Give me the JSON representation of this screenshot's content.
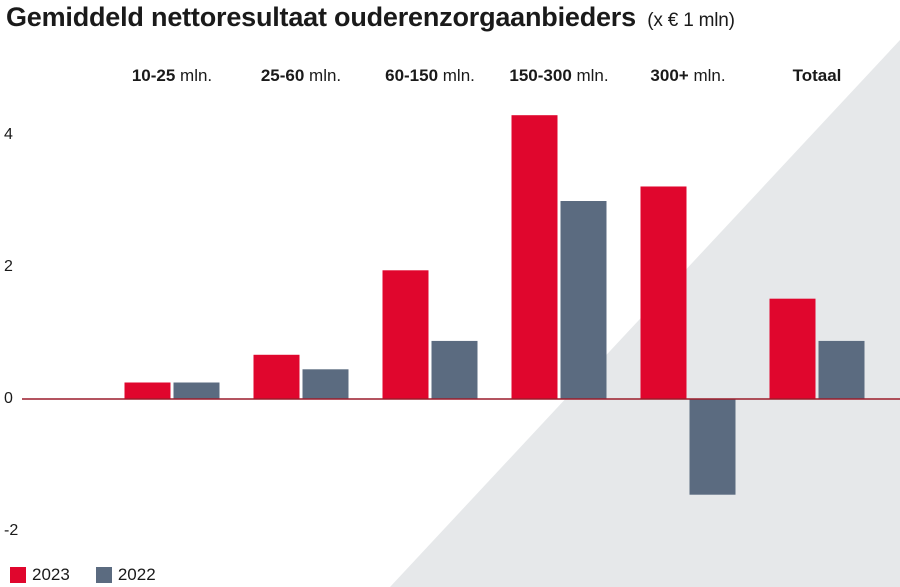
{
  "title": "Gemiddeld nettoresultaat ouderenzorgaanbieders",
  "title_unit": "(x € 1 mln)",
  "colors": {
    "2023": "#e0062d",
    "2022": "#5b6b80",
    "background_wedge": "#e6e8ea",
    "axis": "#9b1c2b"
  },
  "legend": [
    {
      "label": "2023",
      "color": "#e0062d"
    },
    {
      "label": "2022",
      "color": "#5b6b80"
    }
  ],
  "chart_data": {
    "type": "bar",
    "title": "Gemiddeld nettoresultaat ouderenzorgaanbieders",
    "subtitle": "(x € 1 mln)",
    "categories": [
      {
        "bold": "10-25",
        "rest": " mln."
      },
      {
        "bold": "25-60",
        "rest": " mln."
      },
      {
        "bold": "60-150",
        "rest": " mln."
      },
      {
        "bold": "150-300",
        "rest": " mln."
      },
      {
        "bold": "300+",
        "rest": " mln."
      },
      {
        "bold": "Totaal",
        "rest": ""
      }
    ],
    "category_labels": [
      "10-25 mln.",
      "25-60 mln.",
      "60-150 mln.",
      "150-300 mln.",
      "300+ mln.",
      "Totaal"
    ],
    "series": [
      {
        "name": "2023",
        "values": [
          0.25,
          0.67,
          1.95,
          4.3,
          3.22,
          1.52
        ]
      },
      {
        "name": "2022",
        "values": [
          0.25,
          0.45,
          0.88,
          3.0,
          -1.45,
          0.88
        ]
      }
    ],
    "yticks": [
      "4",
      "2",
      "0",
      "-2"
    ],
    "ytick_values": [
      4,
      2,
      0,
      -2
    ],
    "ylim": [
      -2,
      4
    ],
    "grid": false,
    "legend_position": "bottom-left"
  }
}
